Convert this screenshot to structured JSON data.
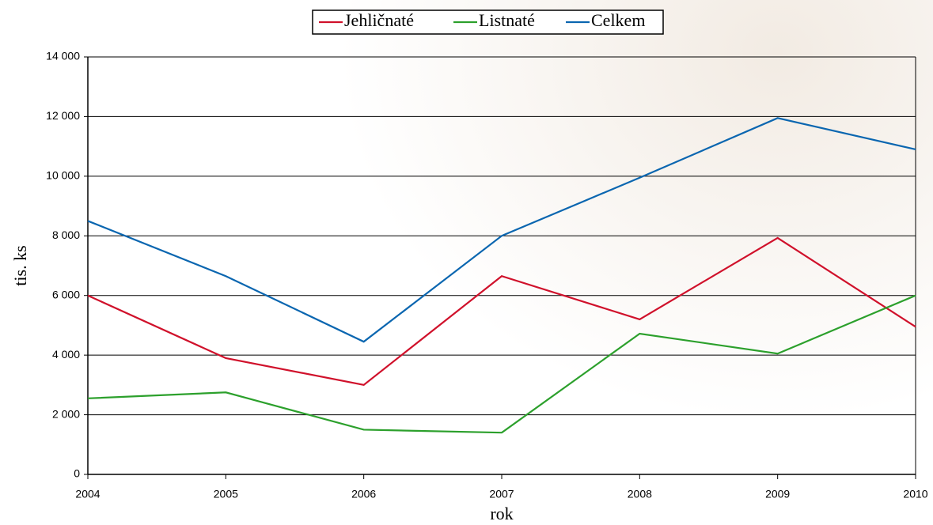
{
  "chart_data": {
    "type": "line",
    "x": [
      2004,
      2005,
      2006,
      2007,
      2008,
      2009,
      2010
    ],
    "xlim": [
      2004,
      2010
    ],
    "xticks": [
      2004,
      2005,
      2006,
      2007,
      2008,
      2009,
      2010
    ],
    "ylim": [
      0,
      14000
    ],
    "yticks": [
      0,
      {
        "value": 2000,
        "label": "2 000"
      },
      {
        "value": 4000,
        "label": "4 000"
      },
      {
        "value": 6000,
        "label": "6 000"
      },
      {
        "value": 8000,
        "label": "8 000"
      },
      {
        "value": 10000,
        "label": "10 000"
      },
      {
        "value": 12000,
        "label": "12 000"
      },
      {
        "value": 14000,
        "label": "14 000"
      }
    ],
    "xlabel": "rok",
    "ylabel": "tis. ks",
    "grid": true,
    "legend": "top",
    "series": [
      {
        "name": "Jehličnaté",
        "color": "#d0112b",
        "values": [
          6000,
          3900,
          3000,
          6650,
          5200,
          7930,
          4950
        ]
      },
      {
        "name": "Listnaté",
        "color": "#2ca02c",
        "values": [
          2550,
          2750,
          1500,
          1400,
          4720,
          4050,
          6000
        ]
      },
      {
        "name": "Celkem",
        "color": "#0a66b0",
        "values": [
          8500,
          6650,
          4450,
          8000,
          9950,
          11950,
          10900
        ]
      }
    ]
  }
}
